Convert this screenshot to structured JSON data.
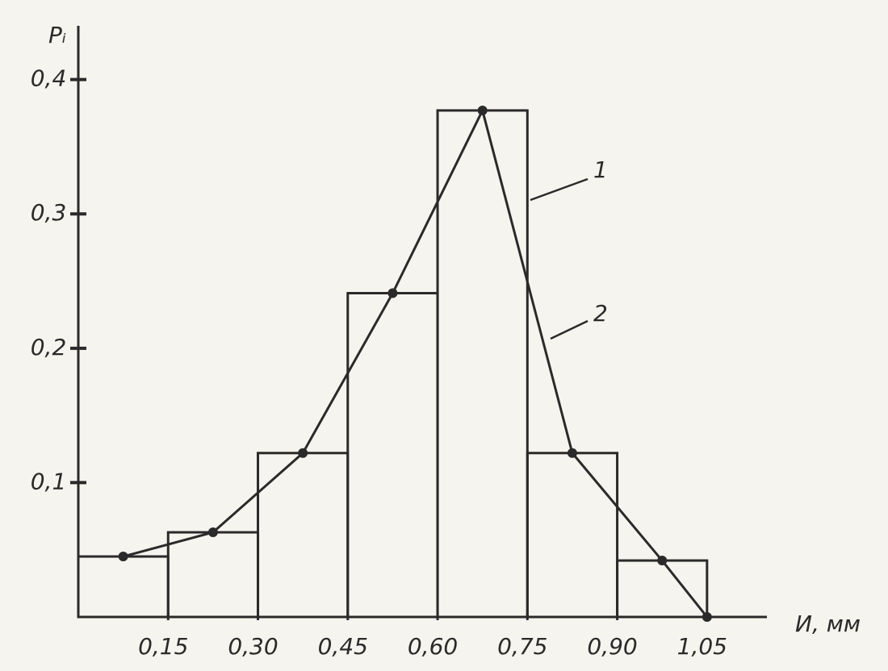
{
  "chart_data": {
    "type": "histogram",
    "y_label": "Pᵢ",
    "x_label": "И, мм",
    "bins": [
      0,
      0.15,
      0.3,
      0.45,
      0.6,
      0.75,
      0.9,
      1.05
    ],
    "values": [
      0.045,
      0.063,
      0.122,
      0.241,
      0.377,
      0.122,
      0.042
    ],
    "histogram_label": "1",
    "polygon": {
      "label": "2",
      "x": [
        0.075,
        0.225,
        0.375,
        0.525,
        0.675,
        0.825,
        0.975,
        1.05
      ],
      "y": [
        0.045,
        0.063,
        0.122,
        0.241,
        0.377,
        0.122,
        0.042,
        0
      ]
    },
    "xlim": [
      0,
      1.15
    ],
    "ylim": [
      0,
      0.44
    ],
    "xticks": [
      {
        "value": 0.15,
        "label": "0,15"
      },
      {
        "value": 0.3,
        "label": "0,30"
      },
      {
        "value": 0.45,
        "label": "0,45"
      },
      {
        "value": 0.6,
        "label": "0,60"
      },
      {
        "value": 0.75,
        "label": "0,75"
      },
      {
        "value": 0.9,
        "label": "0,90"
      },
      {
        "value": 1.05,
        "label": "1,05"
      }
    ],
    "yticks": [
      {
        "value": 0.1,
        "label": "0,1"
      },
      {
        "value": 0.2,
        "label": "0,2"
      },
      {
        "value": 0.3,
        "label": "0,3"
      },
      {
        "value": 0.4,
        "label": "0,4"
      }
    ],
    "color": "#2a2a2a"
  }
}
